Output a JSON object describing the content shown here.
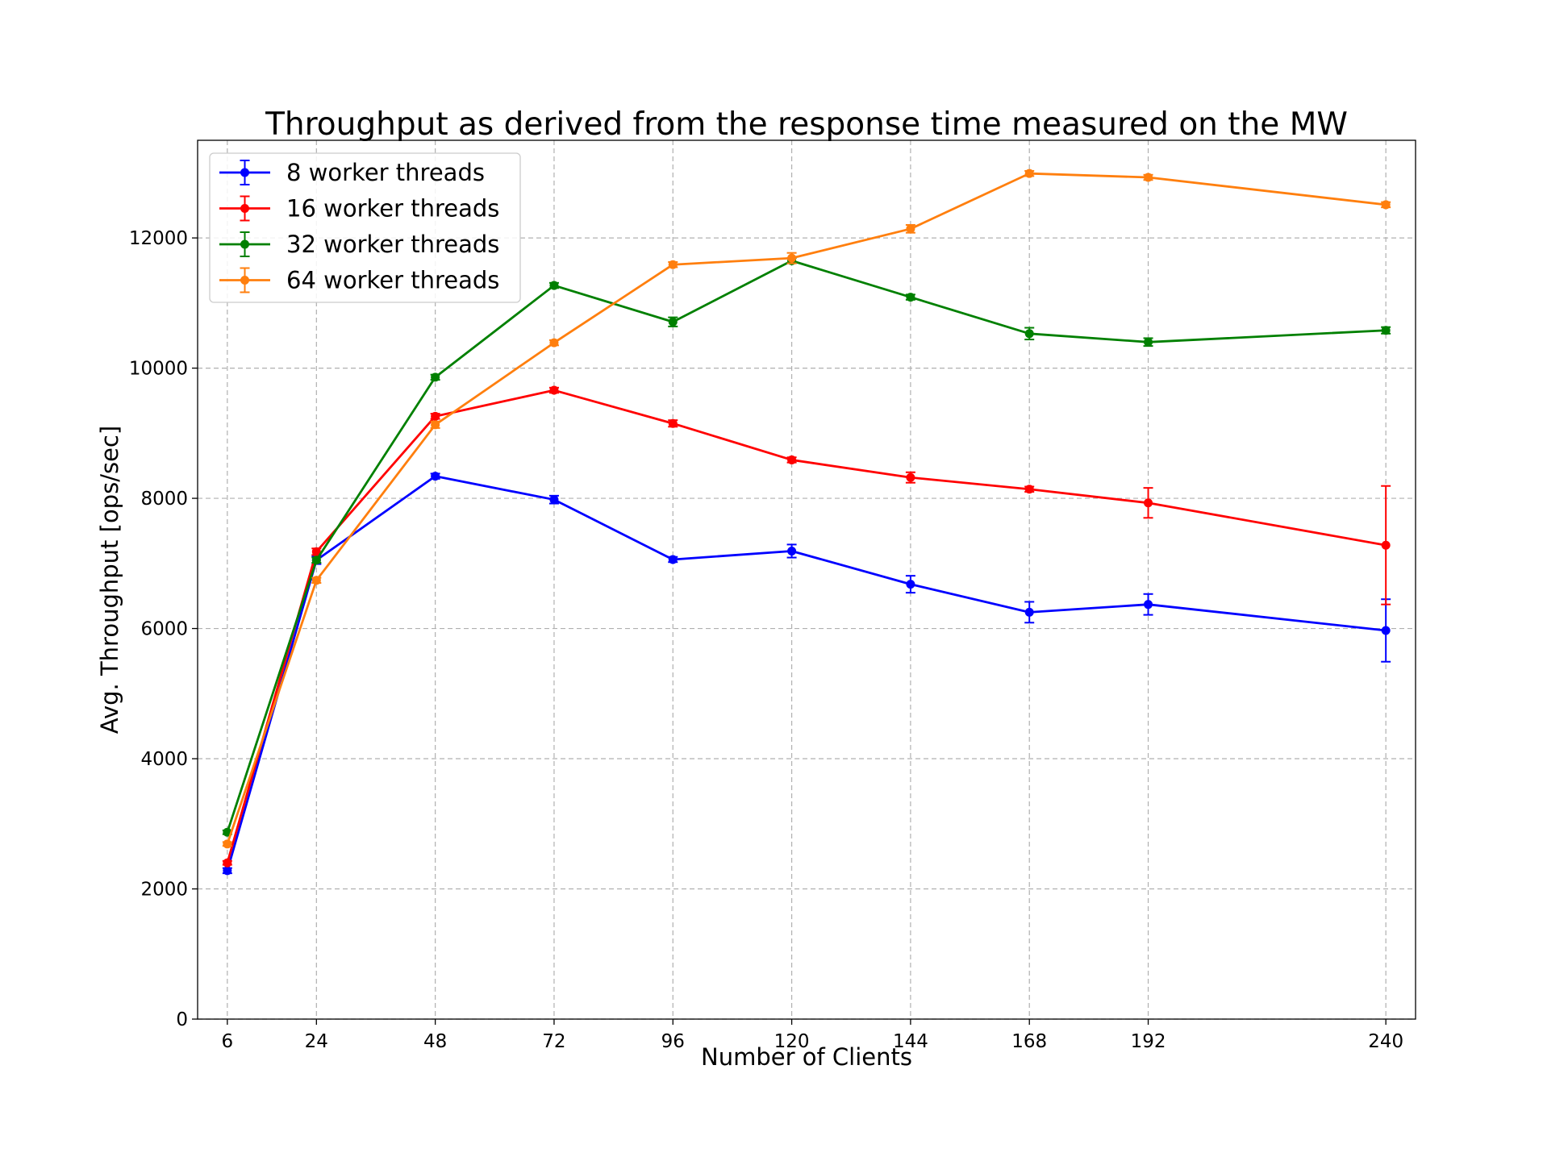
{
  "chart_data": {
    "type": "line",
    "title": "Throughput as derived from the response time measured on the MW",
    "xlabel": "Number of Clients",
    "ylabel": "Avg. Throughput [ops/sec]",
    "x": [
      6,
      24,
      48,
      72,
      96,
      120,
      144,
      168,
      192,
      240
    ],
    "xticks": [
      "6",
      "24",
      "48",
      "72",
      "96",
      "120",
      "144",
      "168",
      "192",
      "240"
    ],
    "xlim": [
      0,
      246
    ],
    "ylim": [
      0,
      13500
    ],
    "yticks": [
      0,
      2000,
      4000,
      6000,
      8000,
      10000,
      12000
    ],
    "ytick_labels": [
      "0",
      "2000",
      "4000",
      "6000",
      "8000",
      "10000",
      "12000"
    ],
    "grid": true,
    "legend_position": "top-left",
    "series": [
      {
        "name": "8 worker threads",
        "color": "#0000ff",
        "values": [
          2280,
          7050,
          8340,
          7980,
          7060,
          7190,
          6680,
          6250,
          6370,
          5970
        ],
        "errors": [
          40,
          60,
          40,
          60,
          40,
          100,
          130,
          160,
          160,
          480
        ]
      },
      {
        "name": "16 worker threads",
        "color": "#ff0000",
        "values": [
          2400,
          7180,
          9260,
          9660,
          9150,
          8590,
          8320,
          8140,
          7930,
          7280
        ],
        "errors": [
          30,
          50,
          40,
          40,
          50,
          40,
          80,
          40,
          230,
          910
        ]
      },
      {
        "name": "32 worker threads",
        "color": "#008000",
        "values": [
          2870,
          7050,
          9860,
          11270,
          10710,
          11650,
          11090,
          10530,
          10400,
          10580
        ],
        "errors": [
          30,
          40,
          40,
          40,
          70,
          40,
          40,
          90,
          60,
          50
        ]
      },
      {
        "name": "64 worker threads",
        "color": "#ff7f0e",
        "values": [
          2690,
          6740,
          9130,
          10390,
          11590,
          11690,
          12140,
          12990,
          12930,
          12510
        ],
        "errors": [
          30,
          40,
          50,
          40,
          40,
          80,
          60,
          40,
          40,
          40
        ]
      }
    ]
  }
}
